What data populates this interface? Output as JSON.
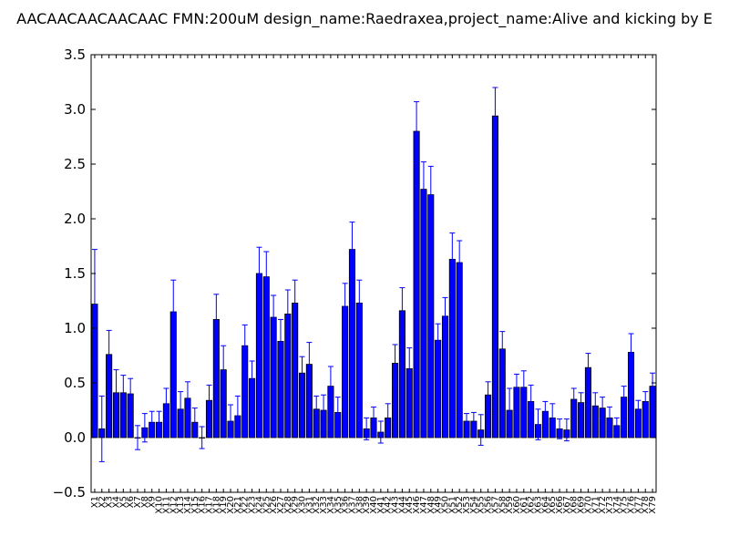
{
  "chart_data": {
    "type": "bar",
    "title": "AACAACAACAACAAC  FMN:200uM  design_name:Raedraxea,project_name:Alive and kicking by E",
    "xlabel": "",
    "ylabel": "",
    "ylim": [
      -0.5,
      3.5
    ],
    "yticks": [
      "−0.5",
      "0.0",
      "0.5",
      "1.0",
      "1.5",
      "2.0",
      "2.5",
      "3.0",
      "3.5"
    ],
    "grid": false,
    "bar_color": "#0000ff",
    "error_color": "#0000ff",
    "categories": [
      "X1",
      "X2",
      "X3",
      "X4",
      "X5",
      "X6",
      "X7",
      "X8",
      "X9",
      "X10",
      "X11",
      "X12",
      "X13",
      "X14",
      "X15",
      "X16",
      "X17",
      "X18",
      "X19",
      "X20",
      "X21",
      "X22",
      "X23",
      "X24",
      "X25",
      "X26",
      "X27",
      "X28",
      "X29",
      "X30",
      "X31",
      "X32",
      "X33",
      "X34",
      "X35",
      "X36",
      "X37",
      "X38",
      "X39",
      "X40",
      "X41",
      "X42",
      "X43",
      "X44",
      "X45",
      "X46",
      "X47",
      "X48",
      "X49",
      "X50",
      "X51",
      "X52",
      "X53",
      "X54",
      "X55",
      "X56",
      "X57",
      "X58",
      "X59",
      "X60",
      "X61",
      "X62",
      "X63",
      "X64",
      "X65",
      "X66",
      "X67",
      "X68",
      "X69",
      "X70",
      "X71",
      "X72",
      "X73",
      "X74",
      "X75",
      "X76",
      "X77",
      "X78",
      "X79"
    ],
    "values": [
      1.22,
      0.08,
      0.76,
      0.41,
      0.41,
      0.4,
      0.0,
      0.09,
      0.14,
      0.14,
      0.31,
      1.15,
      0.26,
      0.36,
      0.14,
      0.0,
      0.34,
      1.08,
      0.62,
      0.15,
      0.2,
      0.84,
      0.54,
      1.5,
      1.47,
      1.1,
      0.88,
      1.13,
      1.23,
      0.59,
      0.67,
      0.26,
      0.25,
      0.47,
      0.23,
      1.2,
      1.72,
      1.23,
      0.08,
      0.18,
      0.05,
      0.18,
      0.68,
      1.16,
      0.63,
      2.8,
      2.27,
      2.22,
      0.89,
      1.11,
      1.63,
      1.6,
      0.15,
      0.15,
      0.07,
      0.39,
      2.94,
      0.81,
      0.25,
      0.46,
      0.46,
      0.33,
      0.12,
      0.24,
      0.18,
      0.08,
      0.07,
      0.35,
      0.32,
      0.64,
      0.29,
      0.27,
      0.18,
      0.11,
      0.37,
      0.78,
      0.26,
      0.33,
      0.47
    ],
    "errors": [
      0.5,
      0.3,
      0.22,
      0.21,
      0.16,
      0.14,
      0.11,
      0.13,
      0.1,
      0.1,
      0.14,
      0.29,
      0.16,
      0.15,
      0.13,
      0.1,
      0.14,
      0.23,
      0.22,
      0.15,
      0.18,
      0.19,
      0.16,
      0.24,
      0.23,
      0.2,
      0.2,
      0.22,
      0.21,
      0.15,
      0.2,
      0.12,
      0.14,
      0.18,
      0.14,
      0.21,
      0.25,
      0.21,
      0.1,
      0.1,
      0.1,
      0.13,
      0.17,
      0.21,
      0.19,
      0.27,
      0.25,
      0.26,
      0.15,
      0.17,
      0.24,
      0.2,
      0.07,
      0.08,
      0.14,
      0.12,
      0.26,
      0.16,
      0.2,
      0.12,
      0.15,
      0.15,
      0.14,
      0.09,
      0.13,
      0.09,
      0.1,
      0.1,
      0.09,
      0.13,
      0.12,
      0.1,
      0.1,
      0.07,
      0.1,
      0.17,
      0.08,
      0.09,
      0.12
    ]
  }
}
